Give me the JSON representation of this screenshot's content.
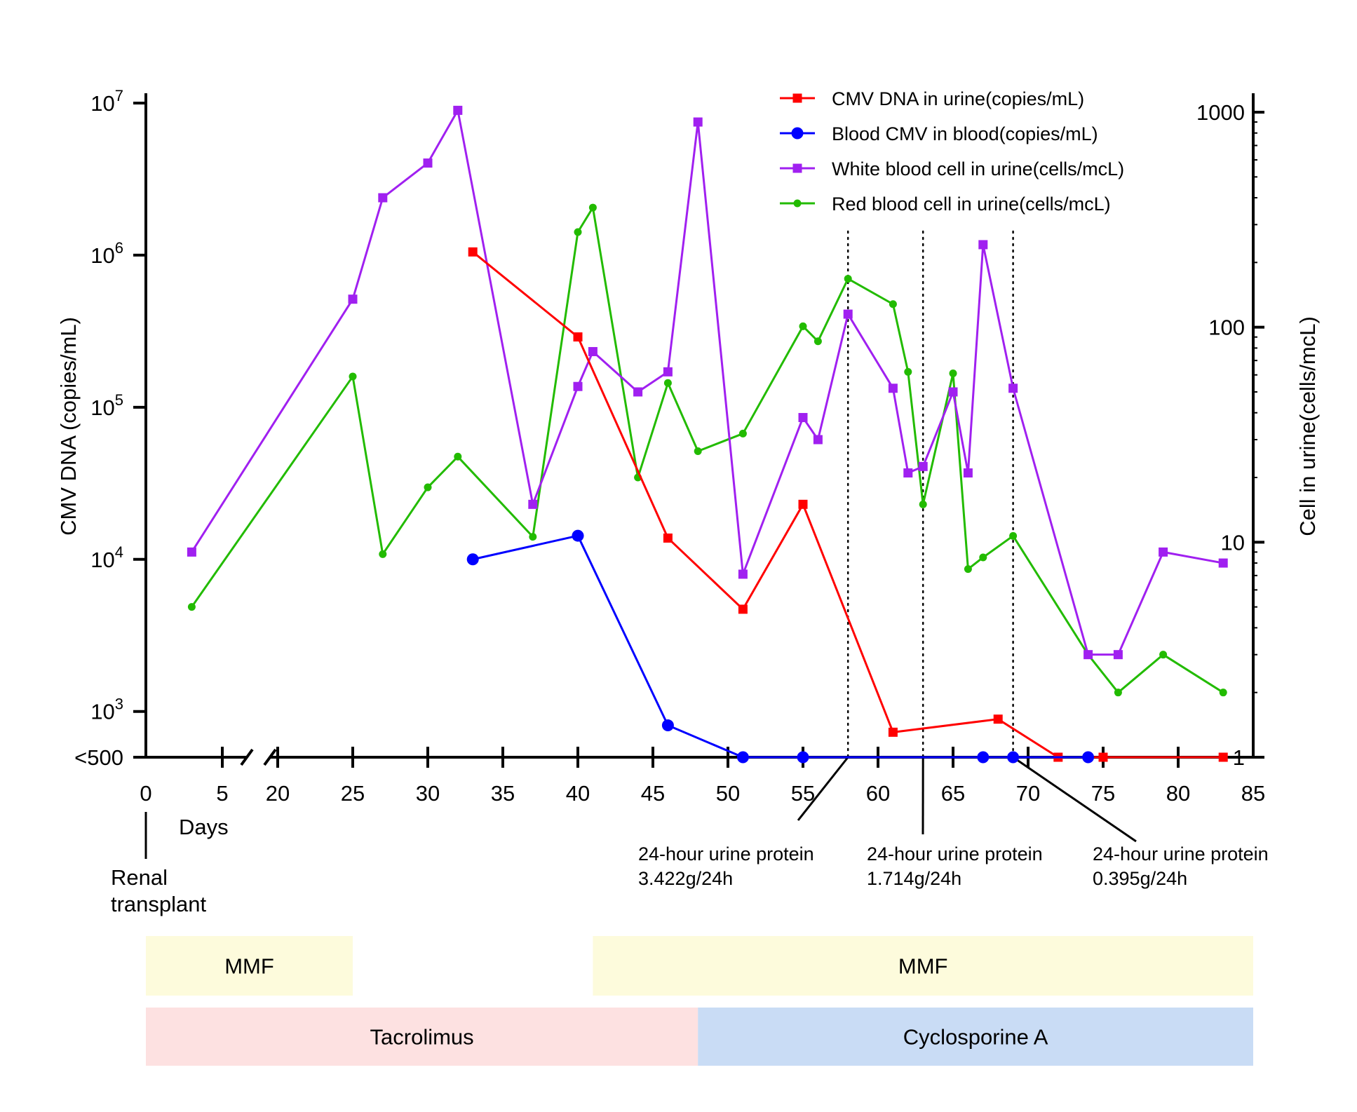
{
  "chart_data": {
    "type": "line",
    "x_axis": {
      "title": "Days",
      "ticks": [
        0,
        5,
        20,
        25,
        30,
        35,
        40,
        45,
        50,
        55,
        60,
        65,
        70,
        75,
        80,
        85
      ],
      "axis_break": "between 5 and 20",
      "range": [
        0,
        85
      ]
    },
    "y_left": {
      "title": "CMV DNA (copies/mL)",
      "scale": "log",
      "ticks": [
        {
          "value": 500,
          "base": "<500",
          "exp": ""
        },
        {
          "value": 1000,
          "base": "10",
          "exp": "3"
        },
        {
          "value": 10000,
          "base": "10",
          "exp": "4"
        },
        {
          "value": 100000,
          "base": "10",
          "exp": "5"
        },
        {
          "value": 1000000,
          "base": "10",
          "exp": "6"
        },
        {
          "value": 10000000,
          "base": "10",
          "exp": "7"
        }
      ],
      "range": [
        500,
        10000000
      ]
    },
    "y_right": {
      "title": "Cell in urine(cells/mcL)",
      "scale": "log",
      "ticks": [
        {
          "value": 1,
          "label": "1"
        },
        {
          "value": 10,
          "label": "10"
        },
        {
          "value": 100,
          "label": "100"
        },
        {
          "value": 1000,
          "label": "1000"
        }
      ],
      "range": [
        1,
        1000
      ]
    },
    "legend_position": "top-right",
    "series": [
      {
        "name": "CMV DNA in urine(copies/mL)",
        "axis": "left",
        "color": "#ff0000",
        "marker": "square",
        "points": [
          [
            33,
            1050000
          ],
          [
            40,
            290000
          ],
          [
            46,
            13800
          ],
          [
            51,
            4700
          ],
          [
            55,
            23000
          ],
          [
            61,
            730
          ],
          [
            68,
            890
          ],
          [
            72,
            500
          ],
          [
            75,
            500
          ],
          [
            83,
            500
          ]
        ]
      },
      {
        "name": "Blood CMV in blood(copies/mL)",
        "axis": "left",
        "color": "#0000ff",
        "marker": "circle",
        "points": [
          [
            33,
            10000
          ],
          [
            40,
            14300
          ],
          [
            46,
            810
          ],
          [
            51,
            500
          ],
          [
            55,
            500
          ],
          [
            67,
            500
          ],
          [
            69,
            500
          ],
          [
            74,
            500
          ]
        ]
      },
      {
        "name": "White blood cell in urine(cells/mcL)",
        "axis": "right",
        "color": "#a020f0",
        "marker": "square",
        "points": [
          [
            3,
            9
          ],
          [
            25,
            135
          ],
          [
            27,
            400
          ],
          [
            30,
            580
          ],
          [
            32,
            1020
          ],
          [
            37,
            15
          ],
          [
            40,
            53
          ],
          [
            41,
            77
          ],
          [
            44,
            50
          ],
          [
            46,
            62
          ],
          [
            48,
            900
          ],
          [
            51,
            7.1
          ],
          [
            55,
            38
          ],
          [
            56,
            30
          ],
          [
            58,
            115
          ],
          [
            61,
            52
          ],
          [
            62,
            21
          ],
          [
            63,
            22.5
          ],
          [
            65,
            50
          ],
          [
            66,
            21
          ],
          [
            67,
            242
          ],
          [
            69,
            52
          ],
          [
            74,
            3
          ],
          [
            76,
            3
          ],
          [
            79,
            9
          ],
          [
            83,
            8
          ]
        ]
      },
      {
        "name": "Red blood cell in urine(cells/mcL)",
        "axis": "right",
        "color": "#22bb00",
        "marker": "circle",
        "points": [
          [
            3,
            5
          ],
          [
            25,
            59
          ],
          [
            27,
            8.8
          ],
          [
            30,
            18
          ],
          [
            32,
            25
          ],
          [
            37,
            10.6
          ],
          [
            40,
            277
          ],
          [
            41,
            360
          ],
          [
            44,
            20
          ],
          [
            46,
            55
          ],
          [
            48,
            26.5
          ],
          [
            51,
            32
          ],
          [
            55,
            101
          ],
          [
            56,
            86
          ],
          [
            58,
            168
          ],
          [
            61,
            128
          ],
          [
            62,
            62
          ],
          [
            63,
            15
          ],
          [
            65,
            61
          ],
          [
            66,
            7.5
          ],
          [
            67,
            8.5
          ],
          [
            69,
            10.7
          ],
          [
            74,
            3
          ],
          [
            76,
            2
          ],
          [
            79,
            3
          ],
          [
            83,
            2
          ]
        ]
      }
    ],
    "reference_lines": [
      {
        "x": 58,
        "label_line1": "24-hour urine protein",
        "label_line2": "3.422g/24h"
      },
      {
        "x": 63,
        "label_line1": "24-hour urine protein",
        "label_line2": "1.714g/24h"
      },
      {
        "x": 69,
        "label_line1": "24-hour urine protein",
        "label_line2": "0.395g/24h"
      }
    ],
    "start_marker": {
      "x": 0,
      "label_line1": "Renal",
      "label_line2": "transplant"
    },
    "treatment_bars": [
      {
        "label": "MMF",
        "start": 0,
        "end": 25,
        "row": 1,
        "color": "#fdfbdc"
      },
      {
        "label": "MMF",
        "start": 41,
        "end": 85,
        "row": 1,
        "color": "#fdfbdc"
      },
      {
        "label": "Tacrolimus",
        "start": 0,
        "end": 48,
        "row": 2,
        "color": "#fde1e1"
      },
      {
        "label": "Cyclosporine A",
        "start": 48,
        "end": 85,
        "row": 2,
        "color": "#c9dcf5"
      }
    ]
  }
}
